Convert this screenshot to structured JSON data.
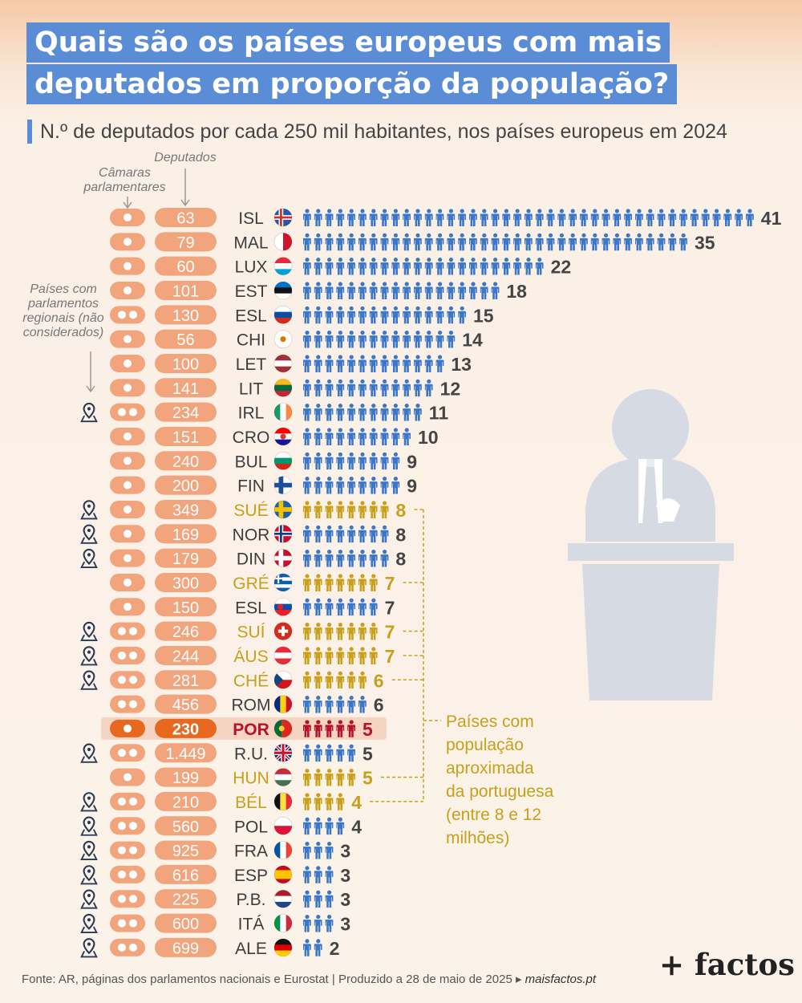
{
  "title": [
    "Quais são os países europeus com mais",
    "deputados em proporção da população?"
  ],
  "subtitle": "N.º de deputados por cada 250 mil habitantes, nos países europeus em 2024",
  "annotations": {
    "deputies_label": "Deputados",
    "chambers_label": [
      "Câmaras",
      "parlamentares"
    ],
    "regional_label": [
      "Países com",
      "parlamentos",
      "regionais (não",
      "considerados)"
    ],
    "similar_pop_note": [
      "Países com",
      "população",
      "aproximada",
      "da portuguesa",
      "(entre 8 e 12",
      "milhões)"
    ]
  },
  "colors": {
    "default": "#3b76c8",
    "similar_population": "#c9a01c",
    "portugal": "#b5122e",
    "pill": "#f2a47d",
    "label": "#3d3d3d"
  },
  "chart_data": {
    "type": "pictogram_bar",
    "title": "Quais são os países europeus com mais deputados em proporção da população?",
    "subtitle": "N.º de deputados por cada 250 mil habitantes, nos países europeus em 2024",
    "rows": [
      {
        "country": "ISL",
        "flag": "iceland",
        "deputies": "63",
        "chambers": 1,
        "regional": false,
        "value": 41,
        "group": "default"
      },
      {
        "country": "MAL",
        "flag": "malta",
        "deputies": "79",
        "chambers": 1,
        "regional": false,
        "value": 35,
        "group": "default"
      },
      {
        "country": "LUX",
        "flag": "luxembourg",
        "deputies": "60",
        "chambers": 1,
        "regional": false,
        "value": 22,
        "group": "default"
      },
      {
        "country": "EST",
        "flag": "estonia",
        "deputies": "101",
        "chambers": 1,
        "regional": false,
        "value": 18,
        "group": "default"
      },
      {
        "country": "ESL",
        "flag": "slovenia",
        "deputies": "130",
        "chambers": 2,
        "regional": false,
        "value": 15,
        "group": "default"
      },
      {
        "country": "CHI",
        "flag": "cyprus",
        "deputies": "56",
        "chambers": 1,
        "regional": false,
        "value": 14,
        "group": "default"
      },
      {
        "country": "LET",
        "flag": "latvia",
        "deputies": "100",
        "chambers": 1,
        "regional": false,
        "value": 13,
        "group": "default"
      },
      {
        "country": "LIT",
        "flag": "lithuania",
        "deputies": "141",
        "chambers": 1,
        "regional": false,
        "value": 12,
        "group": "default"
      },
      {
        "country": "IRL",
        "flag": "ireland",
        "deputies": "234",
        "chambers": 2,
        "regional": true,
        "value": 11,
        "group": "default"
      },
      {
        "country": "CRO",
        "flag": "croatia",
        "deputies": "151",
        "chambers": 1,
        "regional": false,
        "value": 10,
        "group": "default"
      },
      {
        "country": "BUL",
        "flag": "bulgaria",
        "deputies": "240",
        "chambers": 1,
        "regional": false,
        "value": 9,
        "group": "default"
      },
      {
        "country": "FIN",
        "flag": "finland",
        "deputies": "200",
        "chambers": 1,
        "regional": false,
        "value": 9,
        "group": "default"
      },
      {
        "country": "SUÉ",
        "flag": "sweden",
        "deputies": "349",
        "chambers": 1,
        "regional": true,
        "value": 8,
        "group": "similar"
      },
      {
        "country": "NOR",
        "flag": "norway",
        "deputies": "169",
        "chambers": 1,
        "regional": true,
        "value": 8,
        "group": "default"
      },
      {
        "country": "DIN",
        "flag": "denmark",
        "deputies": "179",
        "chambers": 1,
        "regional": true,
        "value": 8,
        "group": "default"
      },
      {
        "country": "GRÉ",
        "flag": "greece",
        "deputies": "300",
        "chambers": 1,
        "regional": false,
        "value": 7,
        "group": "similar"
      },
      {
        "country": "ESL",
        "flag": "slovakia",
        "deputies": "150",
        "chambers": 1,
        "regional": false,
        "value": 7,
        "group": "default"
      },
      {
        "country": "SUÍ",
        "flag": "switzerland",
        "deputies": "246",
        "chambers": 2,
        "regional": true,
        "value": 7,
        "group": "similar"
      },
      {
        "country": "ÁUS",
        "flag": "austria",
        "deputies": "244",
        "chambers": 2,
        "regional": true,
        "value": 7,
        "group": "similar"
      },
      {
        "country": "CHÉ",
        "flag": "czechia",
        "deputies": "281",
        "chambers": 2,
        "regional": true,
        "value": 6,
        "group": "similar"
      },
      {
        "country": "ROM",
        "flag": "romania",
        "deputies": "456",
        "chambers": 2,
        "regional": false,
        "value": 6,
        "group": "default"
      },
      {
        "country": "POR",
        "flag": "portugal",
        "deputies": "230",
        "chambers": 1,
        "regional": false,
        "value": 5,
        "group": "portugal"
      },
      {
        "country": "R.U.",
        "flag": "uk",
        "deputies": "1.449",
        "chambers": 2,
        "regional": true,
        "value": 5,
        "group": "default"
      },
      {
        "country": "HUN",
        "flag": "hungary",
        "deputies": "199",
        "chambers": 1,
        "regional": false,
        "value": 5,
        "group": "similar"
      },
      {
        "country": "BÉL",
        "flag": "belgium",
        "deputies": "210",
        "chambers": 2,
        "regional": true,
        "value": 4,
        "group": "similar"
      },
      {
        "country": "POL",
        "flag": "poland",
        "deputies": "560",
        "chambers": 2,
        "regional": true,
        "value": 4,
        "group": "default"
      },
      {
        "country": "FRA",
        "flag": "france",
        "deputies": "925",
        "chambers": 2,
        "regional": true,
        "value": 3,
        "group": "default"
      },
      {
        "country": "ESP",
        "flag": "spain",
        "deputies": "616",
        "chambers": 2,
        "regional": true,
        "value": 3,
        "group": "default"
      },
      {
        "country": "P.B.",
        "flag": "netherlands",
        "deputies": "225",
        "chambers": 2,
        "regional": true,
        "value": 3,
        "group": "default"
      },
      {
        "country": "ITÁ",
        "flag": "italy",
        "deputies": "600",
        "chambers": 2,
        "regional": true,
        "value": 3,
        "group": "default"
      },
      {
        "country": "ALE",
        "flag": "germany",
        "deputies": "699",
        "chambers": 2,
        "regional": true,
        "value": 2,
        "group": "default"
      }
    ]
  },
  "footer": {
    "source": "Fonte: AR, páginas dos parlamentos nacionais e Eurostat  |  Produzido a 28 de maio de 2025 ▸",
    "site": "maisfactos.pt"
  },
  "brand": "+ factos"
}
